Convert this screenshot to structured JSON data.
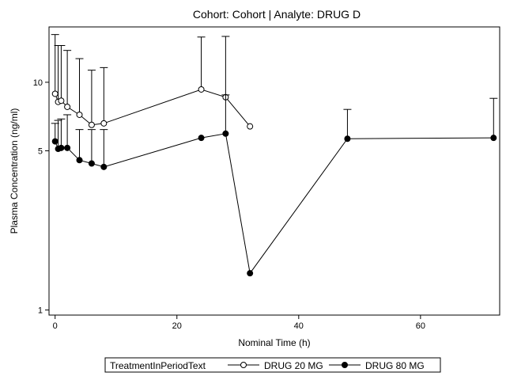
{
  "chart_data": {
    "type": "line",
    "title": "Cohort: Cohort | Analyte: DRUG D",
    "xlabel": "Nominal Time (h)",
    "ylabel": "Plasma Concentration (ng/ml)",
    "xlim": [
      -1,
      73
    ],
    "ylim": [
      0.95,
      17.5
    ],
    "yscale": "log",
    "x_ticks": [
      0,
      20,
      40,
      60
    ],
    "y_ticks": [
      1,
      5,
      10
    ],
    "grid": false,
    "legend": {
      "title": "TreatmentInPeriodText",
      "placement": "bottom"
    },
    "series": [
      {
        "name": "DRUG 20 MG",
        "marker": "open-circle",
        "color": "#000000",
        "x": [
          0,
          0.5,
          1,
          2,
          4,
          6,
          8,
          24,
          28,
          32
        ],
        "y": [
          8.9,
          8.2,
          8.3,
          7.8,
          7.2,
          6.5,
          6.6,
          9.3,
          8.6,
          6.4
        ],
        "error_upper": [
          16.2,
          14.5,
          14.5,
          13.8,
          12.7,
          11.3,
          11.6,
          15.8,
          15.9,
          null
        ]
      },
      {
        "name": "DRUG 80 MG",
        "marker": "filled-circle",
        "color": "#000000",
        "x": [
          0,
          0.5,
          1,
          2,
          4,
          6,
          8,
          24,
          28,
          32,
          48,
          72
        ],
        "y": [
          5.5,
          5.1,
          5.15,
          5.15,
          4.55,
          4.4,
          4.25,
          5.7,
          5.95,
          1.45,
          5.65,
          5.7
        ],
        "error_upper": [
          6.6,
          6.8,
          6.9,
          7.2,
          6.2,
          6.2,
          6.2,
          null,
          8.8,
          null,
          7.6,
          8.5
        ]
      }
    ]
  }
}
